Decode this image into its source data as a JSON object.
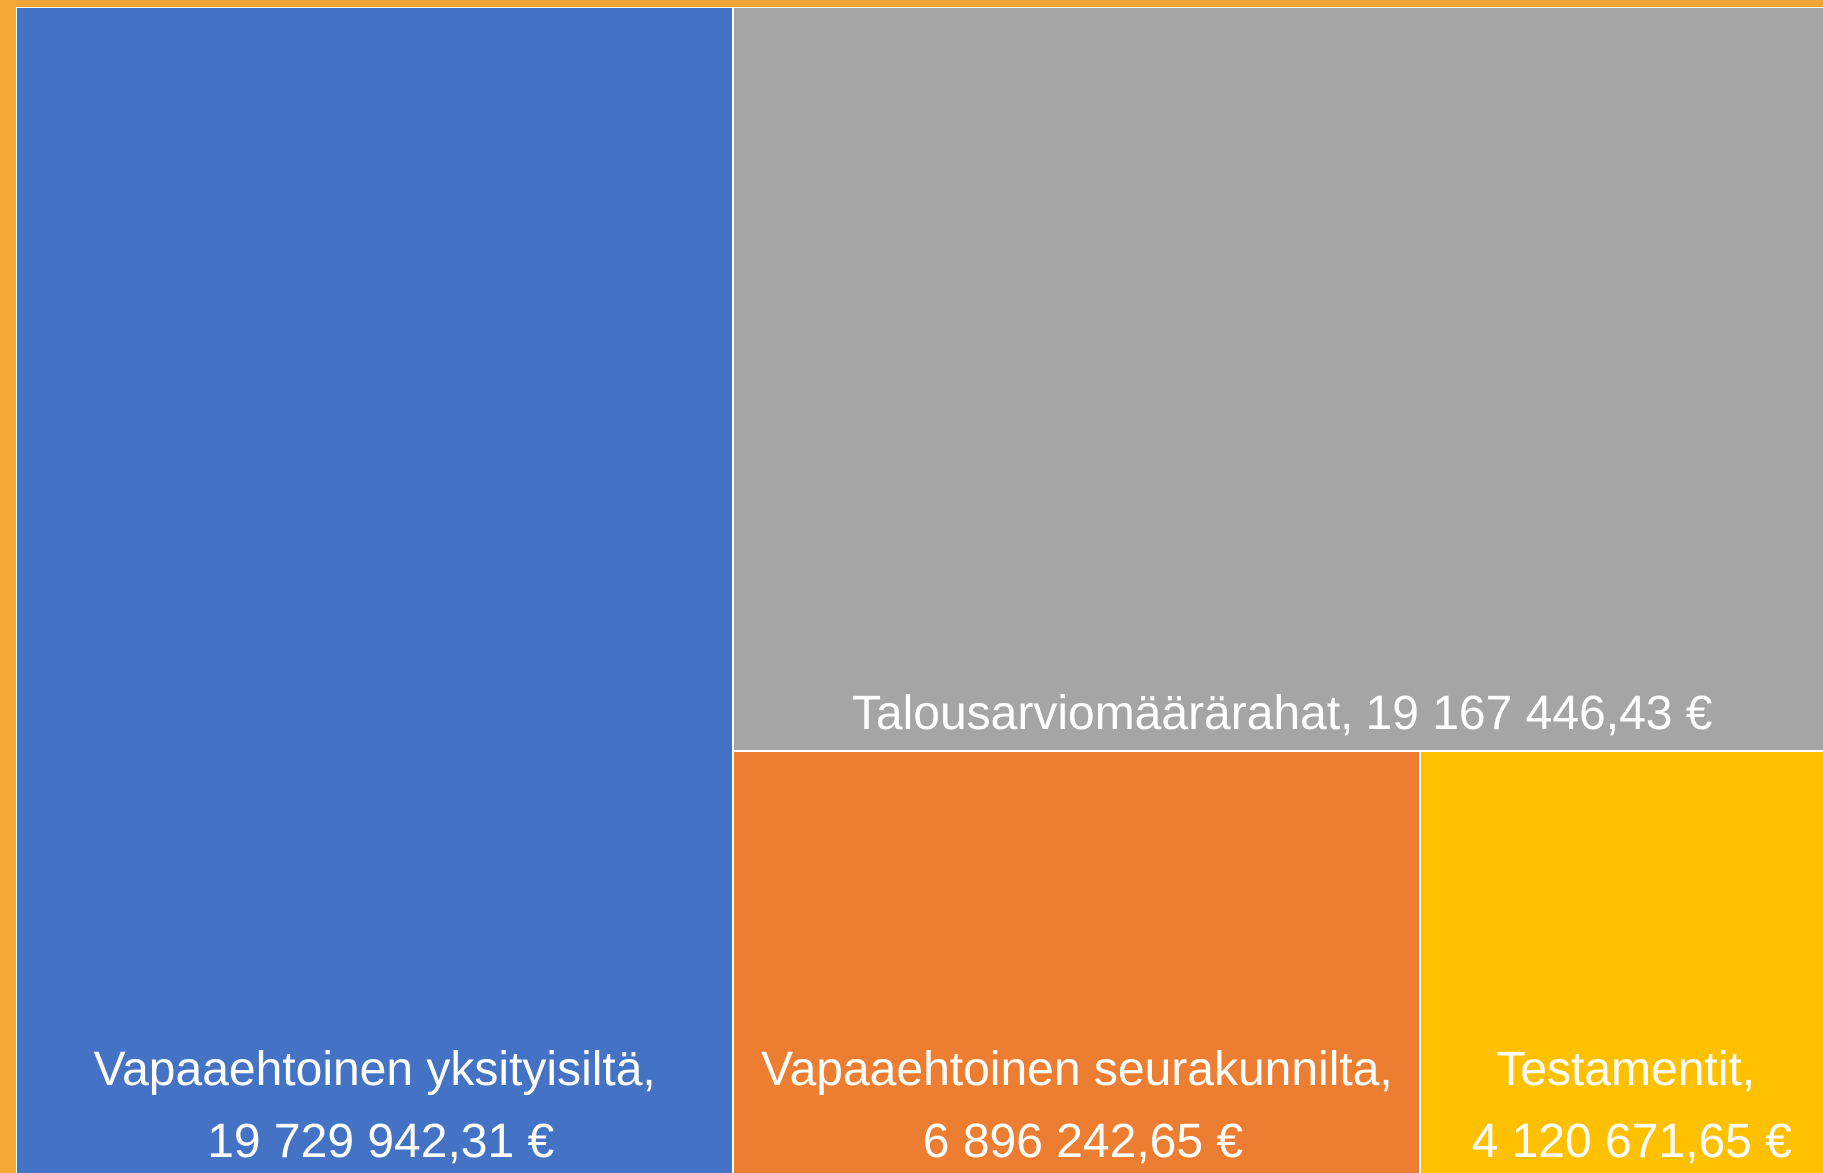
{
  "chart_data": {
    "type": "treemap",
    "categories": [
      "Vapaaehtoinen yksityisiltä,",
      "Talousarviomäärärahat,",
      "Vapaaehtoinen seurakunnilta,",
      "Testamentit,"
    ],
    "values": [
      19729942.31,
      19167446.43,
      6896242.65,
      4120671.65
    ],
    "value_labels": [
      "19 729 942,31 €",
      "19 167 446,43 €",
      "6 896 242,65 €",
      "4 120 671,65 €"
    ],
    "colors": [
      "#4472c4",
      "#a5a5a5",
      "#ed7d31",
      "#ffc000"
    ],
    "border_color": "#f4a736"
  }
}
